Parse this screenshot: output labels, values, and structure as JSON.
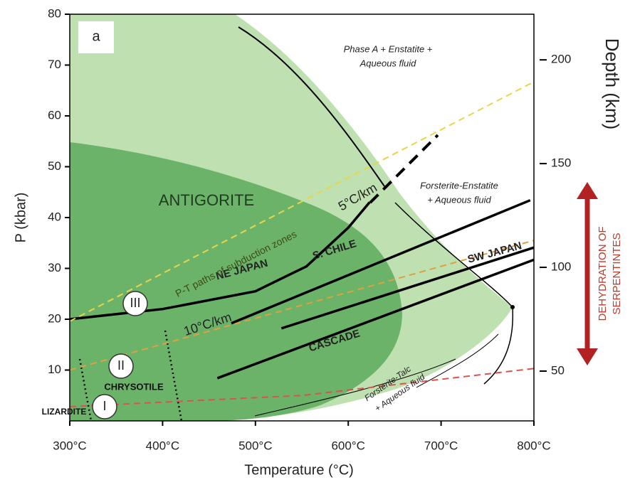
{
  "chart_data": {
    "type": "line",
    "panel_label": "a",
    "xlabel": "Temperature (°C)",
    "ylabel": "P (kbar)",
    "y2label": "Depth (km)",
    "xlim": [
      300,
      800
    ],
    "xticks": [
      {
        "value": 300,
        "label": "300°C"
      },
      {
        "value": 400,
        "label": "400°C"
      },
      {
        "value": 500,
        "label": "500°C"
      },
      {
        "value": 600,
        "label": "600°C"
      },
      {
        "value": 700,
        "label": "700°C"
      },
      {
        "value": 800,
        "label": "800°C"
      }
    ],
    "ylim": [
      0,
      80
    ],
    "yticks": [
      10,
      20,
      30,
      40,
      50,
      60,
      70,
      80
    ],
    "y2lim": [
      26,
      222
    ],
    "y2ticks": [
      50,
      100,
      150,
      200
    ],
    "series": [
      {
        "name": "NE JAPAN",
        "color": "#000000",
        "x": [
          300,
          400,
          500,
          555,
          600,
          623
        ],
        "values": [
          20,
          22,
          25.5,
          30.4,
          38,
          43
        ]
      },
      {
        "name": "S. CHILE",
        "color": "#000000",
        "x": [
          474,
          796
        ],
        "values": [
          19.2,
          43.4
        ]
      },
      {
        "name": "SW JAPAN",
        "color": "#000000",
        "x": [
          528,
          800
        ],
        "values": [
          18.2,
          34.1
        ]
      },
      {
        "name": "CASCADE",
        "color": "#000000",
        "x": [
          459,
          800
        ],
        "values": [
          8.4,
          31.7
        ]
      },
      {
        "name": "5°C/km",
        "color": "#e8d64a",
        "dashed": true,
        "x": [
          300,
          800
        ],
        "values": [
          19.6,
          66.7
        ]
      },
      {
        "name": "10°C/km",
        "color": "#e0a040",
        "dashed": true,
        "x": [
          300,
          800
        ],
        "values": [
          10,
          35.5
        ]
      },
      {
        "color": "#d9534f",
        "dashed": true,
        "x": [
          300,
          550,
          800
        ],
        "values": [
          2.8,
          5,
          10.3
        ]
      }
    ],
    "annotations": [
      "Phase A + Enstatite +",
      "Aqueous fluid",
      "Forsterite-Enstatite",
      "+ Aqueous fluid",
      "ANTIGORITE",
      "P-T paths of subduction zones",
      "CHRYSOTILE",
      "LIZARDITE",
      "Forsterite-Talc",
      "+ Aqueous fluid",
      "III",
      "II",
      "I",
      "DEHYDRATION OF",
      "SERPENTINTES"
    ]
  }
}
